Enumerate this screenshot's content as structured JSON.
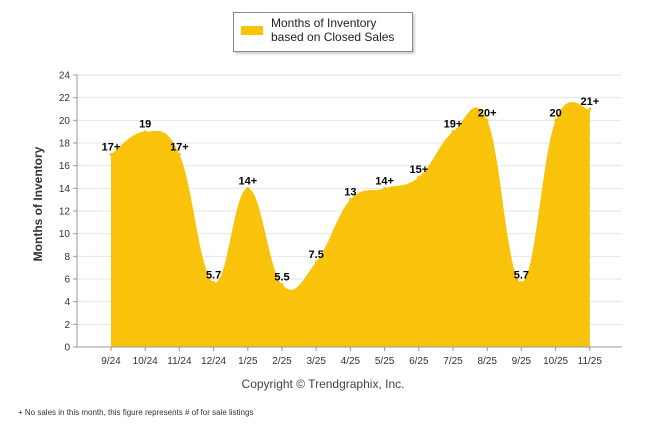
{
  "legend": {
    "label": "Months of Inventory based on Closed Sales"
  },
  "copyright": "Copyright © Trendgraphix, Inc.",
  "footnote": "+  No sales in this month, this figure represents # of for sale listings",
  "colors": {
    "series": "#f8c30a",
    "grid": "#e6e6e6",
    "axis": "#999999"
  },
  "chart_data": {
    "type": "area",
    "ylabel": "Months of Inventory",
    "xlabel": "",
    "ylim": [
      0,
      24
    ],
    "yticks": [
      0,
      2,
      4,
      6,
      8,
      10,
      12,
      14,
      16,
      18,
      20,
      22,
      24
    ],
    "grid": true,
    "legend_position": "top-center",
    "categories": [
      "9/24",
      "10/24",
      "11/24",
      "12/24",
      "1/25",
      "2/25",
      "3/25",
      "4/25",
      "5/25",
      "6/25",
      "7/25",
      "8/25",
      "9/25",
      "10/25",
      "11/25"
    ],
    "series": [
      {
        "name": "Months of Inventory based on Closed Sales",
        "values": [
          17,
          19,
          17,
          5.7,
          14,
          5.5,
          7.5,
          13,
          14,
          15,
          19,
          20,
          5.7,
          20,
          21
        ],
        "labels": [
          "17+",
          "19",
          "17+",
          "5.7",
          "14+",
          "5.5",
          "7.5",
          "13",
          "14+",
          "15+",
          "19+",
          "20+",
          "5.7",
          "20",
          "21+"
        ]
      }
    ]
  }
}
